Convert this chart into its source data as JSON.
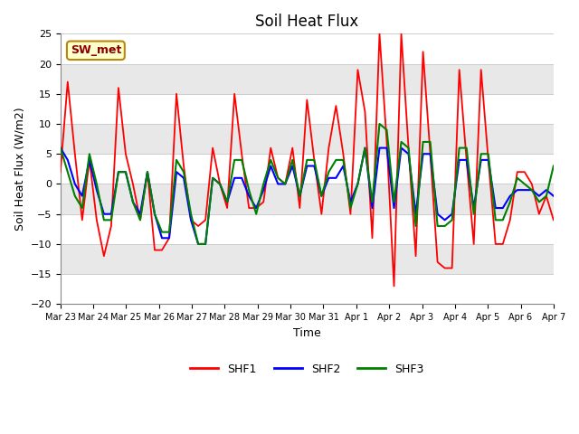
{
  "title": "Soil Heat Flux",
  "xlabel": "Time",
  "ylabel": "Soil Heat Flux (W/m2)",
  "ylim": [
    -20,
    25
  ],
  "annotation_label": "SW_met",
  "legend": [
    "SHF1",
    "SHF2",
    "SHF3"
  ],
  "line_colors": [
    "red",
    "blue",
    "green"
  ],
  "x_tick_labels": [
    "Mar 23",
    "Mar 24",
    "Mar 25",
    "Mar 26",
    "Mar 27",
    "Mar 28",
    "Mar 29",
    "Mar 30",
    "Mar 31",
    "Apr 1",
    "Apr 2",
    "Apr 3",
    "Apr 4",
    "Apr 5",
    "Apr 6",
    "Apr 7"
  ],
  "yticks": [
    -20,
    -15,
    -10,
    -5,
    0,
    5,
    10,
    15,
    20,
    25
  ],
  "zebra_colors": [
    "#ffffff",
    "#e8e8e8"
  ],
  "shf1": [
    2,
    17,
    5,
    -6,
    4,
    -6,
    -12,
    -7,
    16,
    5,
    0,
    -6,
    2,
    -11,
    -11,
    -9,
    15,
    3,
    -6,
    -7,
    -6,
    6,
    0,
    -4,
    15,
    5,
    -4,
    -4,
    -3,
    6,
    1,
    0,
    6,
    -4,
    14,
    4,
    -5,
    6,
    13,
    5,
    -5,
    19,
    12,
    -9,
    25,
    7,
    -17,
    25,
    6,
    -12,
    22,
    5,
    -13,
    -14,
    -14,
    19,
    4,
    -10,
    19,
    4,
    -10,
    -10,
    -6,
    2,
    2,
    0,
    -5,
    -2,
    -6
  ],
  "shf2": [
    6,
    4,
    0,
    -2,
    4,
    -1,
    -5,
    -5,
    2,
    2,
    -3,
    -5,
    2,
    -5,
    -9,
    -9,
    2,
    1,
    -6,
    -10,
    -10,
    1,
    0,
    -3,
    1,
    1,
    -2,
    -4,
    -1,
    3,
    0,
    0,
    3,
    -2,
    3,
    3,
    -2,
    1,
    1,
    3,
    -3,
    0,
    6,
    -4,
    6,
    6,
    -4,
    6,
    5,
    -5,
    5,
    5,
    -5,
    -6,
    -5,
    4,
    4,
    -4,
    4,
    4,
    -4,
    -4,
    -2,
    -1,
    -1,
    -1,
    -2,
    -1,
    -2
  ],
  "shf3": [
    6,
    2,
    -2,
    -4,
    5,
    0,
    -6,
    -6,
    2,
    2,
    -3,
    -6,
    2,
    -5,
    -8,
    -8,
    4,
    2,
    -5,
    -10,
    -10,
    1,
    0,
    -3,
    4,
    4,
    -1,
    -5,
    0,
    4,
    1,
    0,
    4,
    -2,
    4,
    4,
    -2,
    2,
    4,
    4,
    -4,
    0,
    6,
    -3,
    10,
    9,
    -3,
    7,
    6,
    -7,
    7,
    7,
    -7,
    -7,
    -6,
    6,
    6,
    -5,
    5,
    5,
    -6,
    -6,
    -3,
    1,
    0,
    -1,
    -3,
    -2,
    3
  ]
}
